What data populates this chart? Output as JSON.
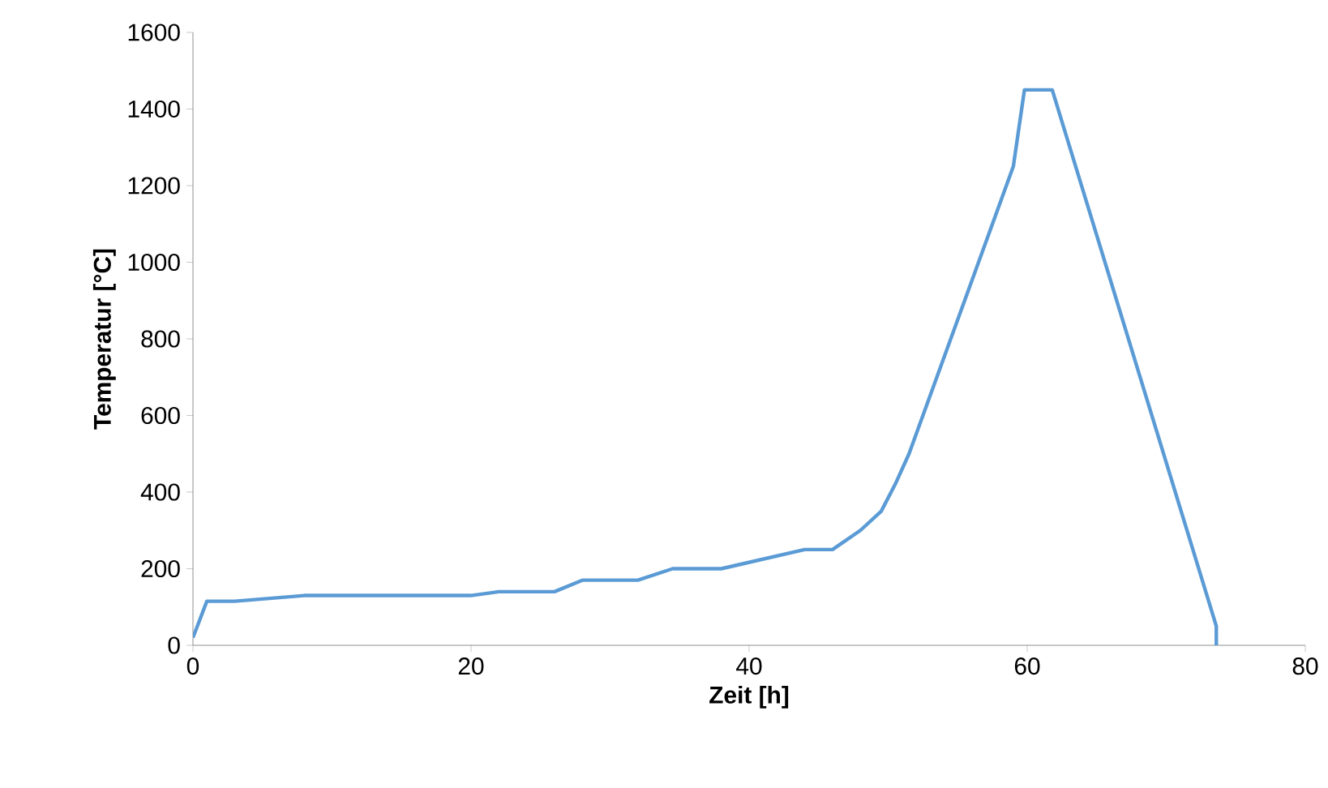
{
  "chart_data": {
    "type": "line",
    "xlabel": "Zeit [h]",
    "ylabel": "Temperatur [°C]",
    "xlim": [
      0,
      80
    ],
    "xticks": [
      0,
      20,
      40,
      60,
      80
    ],
    "ylim": [
      0,
      1600
    ],
    "yticks": [
      0,
      200,
      400,
      600,
      800,
      1000,
      1200,
      1400,
      1600
    ],
    "grid": false,
    "marker": "none",
    "line_style": "solid",
    "series": [
      {
        "color": "#5b9bd5",
        "x": [
          0,
          1,
          3,
          8,
          20,
          22,
          26,
          28,
          32,
          34.5,
          38,
          44,
          46,
          48,
          49.5,
          50.5,
          51.5,
          59,
          59.8,
          61.8,
          73.6,
          73.6
        ],
        "values": [
          20,
          115,
          115,
          130,
          130,
          140,
          140,
          170,
          170,
          200,
          200,
          250,
          250,
          300,
          350,
          420,
          500,
          1250,
          1450,
          1450,
          50,
          0
        ]
      }
    ]
  }
}
